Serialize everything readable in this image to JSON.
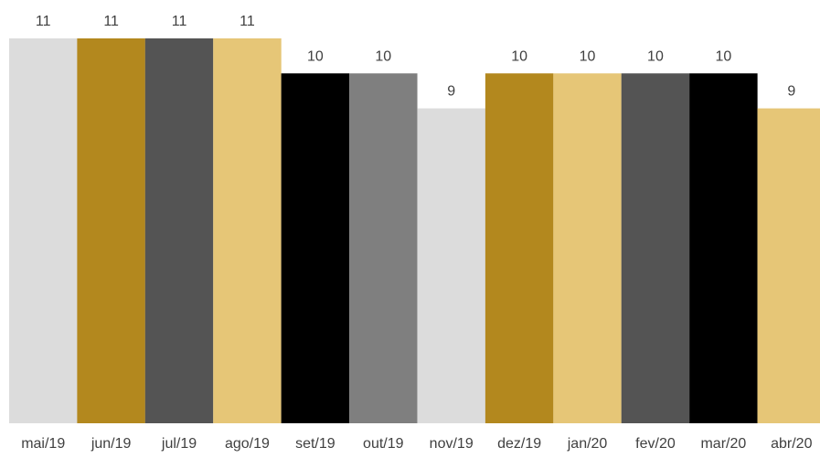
{
  "chart_data": {
    "type": "bar",
    "title": "",
    "xlabel": "",
    "ylabel": "",
    "ylim": [
      0,
      11
    ],
    "grid": false,
    "legend": "none",
    "categories": [
      "mai/19",
      "jun/19",
      "jul/19",
      "ago/19",
      "set/19",
      "out/19",
      "nov/19",
      "dez/19",
      "jan/20",
      "fev/20",
      "mar/20",
      "abr/20"
    ],
    "values": [
      11,
      11,
      11,
      11,
      10,
      10,
      9,
      10,
      10,
      10,
      10,
      9
    ],
    "colors": [
      "#dcdcdc",
      "#b3881e",
      "#545454",
      "#e6c677",
      "#000000",
      "#7f7f7f",
      "#dcdcdc",
      "#b3881e",
      "#e6c677",
      "#545454",
      "#000000",
      "#e6c677"
    ]
  }
}
